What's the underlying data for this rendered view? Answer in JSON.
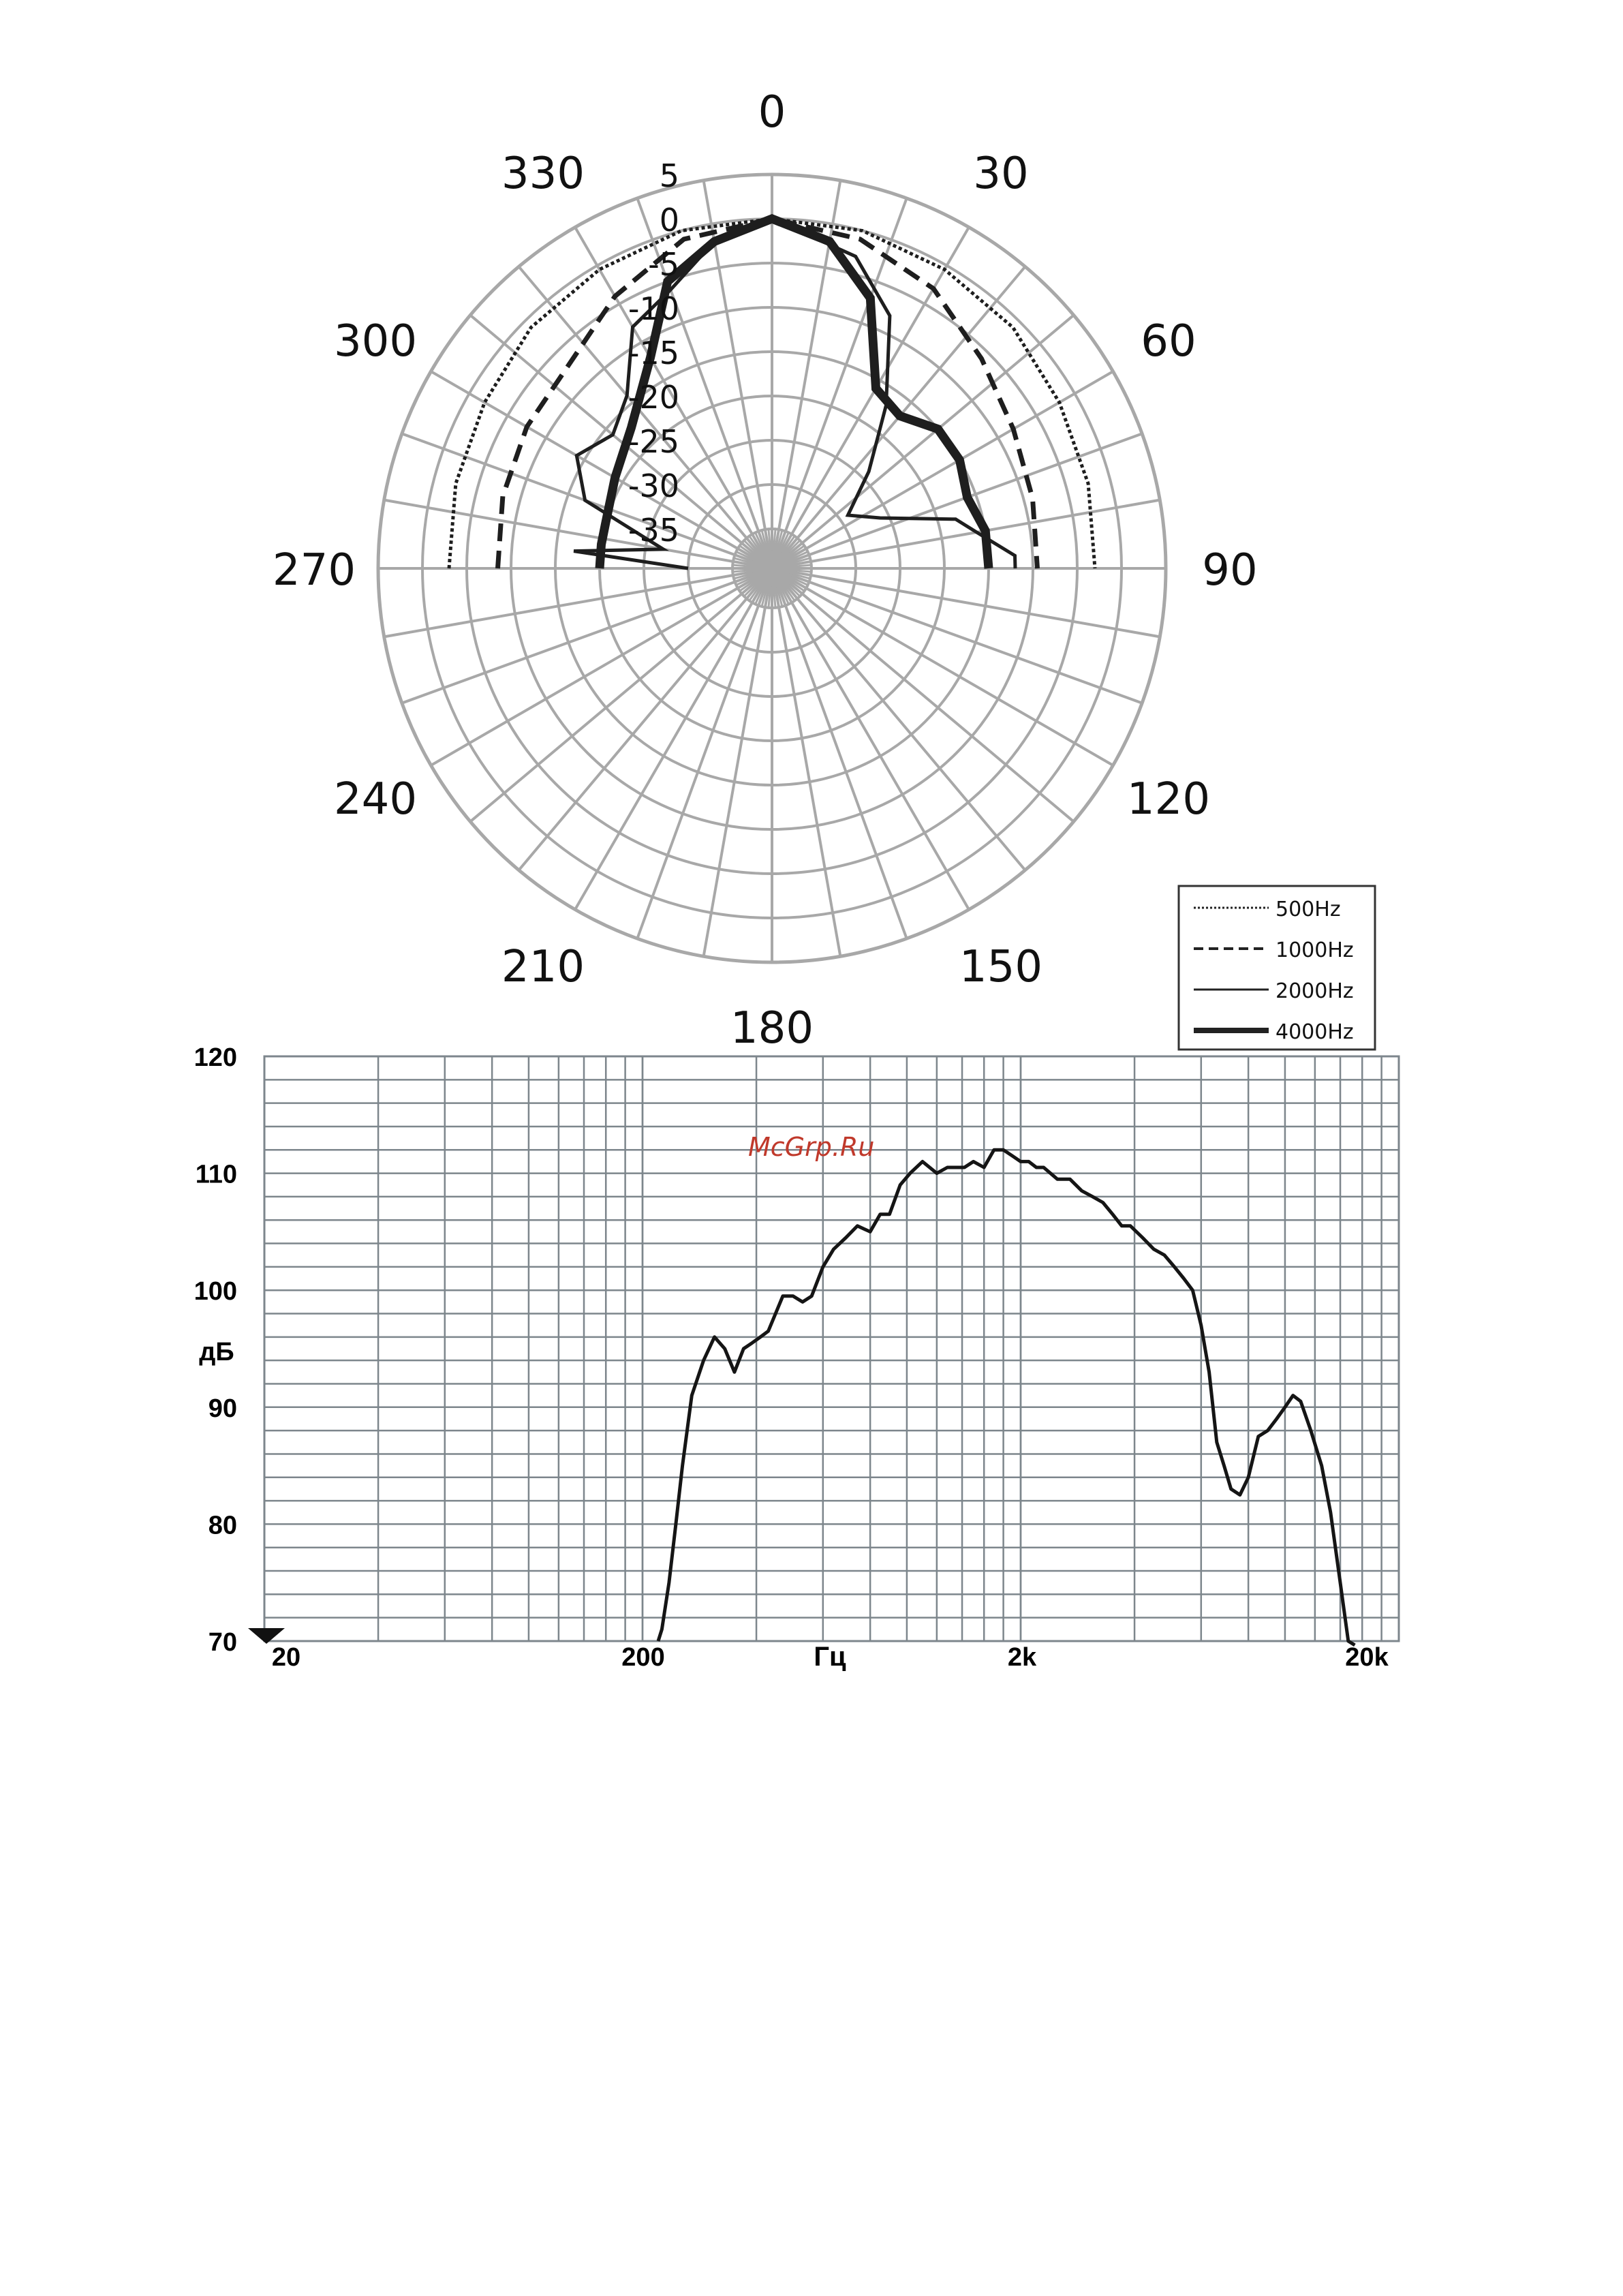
{
  "watermark": "McGrp.Ru",
  "chart_data": [
    {
      "type": "polar",
      "angle_labels": [
        "0",
        "30",
        "60",
        "90",
        "120",
        "150",
        "180",
        "210",
        "240",
        "270",
        "300",
        "330"
      ],
      "radial_labels": [
        "5",
        "0",
        "-5",
        "-10",
        "-15",
        "-20",
        "-25",
        "-30",
        "-35"
      ],
      "rlim": [
        -35,
        5
      ],
      "grid": true,
      "legend_position": "bottom-right",
      "series": [
        {
          "name": "500Hz",
          "style": "dotted",
          "points": [
            [
              0,
              0
            ],
            [
              15,
              0
            ],
            [
              30,
              -0.5
            ],
            [
              45,
              -1
            ],
            [
              60,
              -2
            ],
            [
              75,
              -2.5
            ],
            [
              90,
              -3
            ],
            [
              270,
              -3
            ],
            [
              285,
              -2.5
            ],
            [
              300,
              -2
            ],
            [
              315,
              -1
            ],
            [
              330,
              -0.5
            ],
            [
              345,
              0
            ]
          ]
        },
        {
          "name": "1000Hz",
          "style": "dashed",
          "points": [
            [
              0,
              0
            ],
            [
              15,
              -1
            ],
            [
              30,
              -3
            ],
            [
              45,
              -6
            ],
            [
              60,
              -8
            ],
            [
              75,
              -9
            ],
            [
              90,
              -9.5
            ],
            [
              270,
              -8.5
            ],
            [
              285,
              -8
            ],
            [
              300,
              -7.5
            ],
            [
              315,
              -7
            ],
            [
              330,
              -4
            ],
            [
              345,
              -1
            ]
          ]
        },
        {
          "name": "2000Hz",
          "style": "thin",
          "points": [
            [
              0,
              0
            ],
            [
              15,
              -3
            ],
            [
              25,
              -8
            ],
            [
              35,
              -17
            ],
            [
              45,
              -24
            ],
            [
              55,
              -29
            ],
            [
              65,
              -26
            ],
            [
              75,
              -18
            ],
            [
              80,
              -16
            ],
            [
              87,
              -12
            ],
            [
              90,
              -12
            ],
            [
              270,
              -30
            ],
            [
              275,
              -17
            ],
            [
              280,
              -27
            ],
            [
              290,
              -17
            ],
            [
              300,
              -14
            ],
            [
              310,
              -16
            ],
            [
              320,
              -14
            ],
            [
              330,
              -8
            ],
            [
              340,
              -6
            ],
            [
              350,
              -2
            ]
          ]
        },
        {
          "name": "4000Hz",
          "style": "thick",
          "points": [
            [
              0,
              0
            ],
            [
              10,
              -2
            ],
            [
              20,
              -7
            ],
            [
              30,
              -16
            ],
            [
              40,
              -17
            ],
            [
              50,
              -15
            ],
            [
              60,
              -15
            ],
            [
              70,
              -16
            ],
            [
              80,
              -15
            ],
            [
              90,
              -15
            ],
            [
              270,
              -20
            ],
            [
              278,
              -20
            ],
            [
              285,
              -20
            ],
            [
              300,
              -19
            ],
            [
              315,
              -17
            ],
            [
              330,
              -12
            ],
            [
              340,
              -5
            ],
            [
              350,
              -2
            ]
          ]
        }
      ]
    },
    {
      "type": "line",
      "xlabel": "Гц",
      "ylabel": "дБ",
      "xscale": "log",
      "xlim": [
        20,
        20000
      ],
      "ylim": [
        70,
        120
      ],
      "x_ticks": [
        "20",
        "200",
        "2k",
        "20k"
      ],
      "y_ticks": [
        "70",
        "80",
        "90",
        "100",
        "110",
        "120"
      ],
      "grid": true,
      "series": [
        {
          "x": [
            220,
            225,
            235,
            245,
            255,
            270,
            290,
            310,
            330,
            350,
            370,
            390,
            410,
            430,
            470,
            500,
            530,
            560,
            600,
            640,
            690,
            740,
            800,
            850,
            870,
            900,
            960,
            1020,
            1100,
            1200,
            1280,
            1350,
            1420,
            1500,
            1600,
            1700,
            1800,
            1900,
            2000,
            2100,
            2200,
            2300,
            2500,
            2700,
            2900,
            3100,
            3300,
            3500,
            3700,
            3900,
            4200,
            4500,
            4800,
            5100,
            5400,
            5700,
            6000,
            6300,
            6600,
            6900,
            7200,
            7600,
            8000,
            8500,
            9000,
            9500,
            10000,
            10500,
            11000,
            11700,
            12500,
            13200,
            14000,
            14700,
            15300
          ],
          "y": [
            70,
            71,
            75,
            80,
            85,
            91,
            94,
            96,
            95,
            93,
            95,
            95.5,
            96,
            96.5,
            99.5,
            99.5,
            99,
            99.5,
            102,
            103.5,
            104.5,
            105.5,
            105,
            106.5,
            106.5,
            106.5,
            109,
            110,
            111,
            110,
            110.5,
            110.5,
            110.5,
            111,
            110.5,
            112,
            112,
            111.5,
            111,
            111,
            110.5,
            110.5,
            109.5,
            109.5,
            108.5,
            108,
            107.5,
            106.5,
            105.5,
            105.5,
            104.5,
            103.5,
            103,
            102,
            101,
            100,
            97,
            93,
            87,
            85,
            83,
            82.5,
            84,
            87.5,
            88,
            89,
            90,
            91,
            90.5,
            88,
            85,
            81,
            75,
            70,
            66
          ]
        }
      ]
    }
  ]
}
